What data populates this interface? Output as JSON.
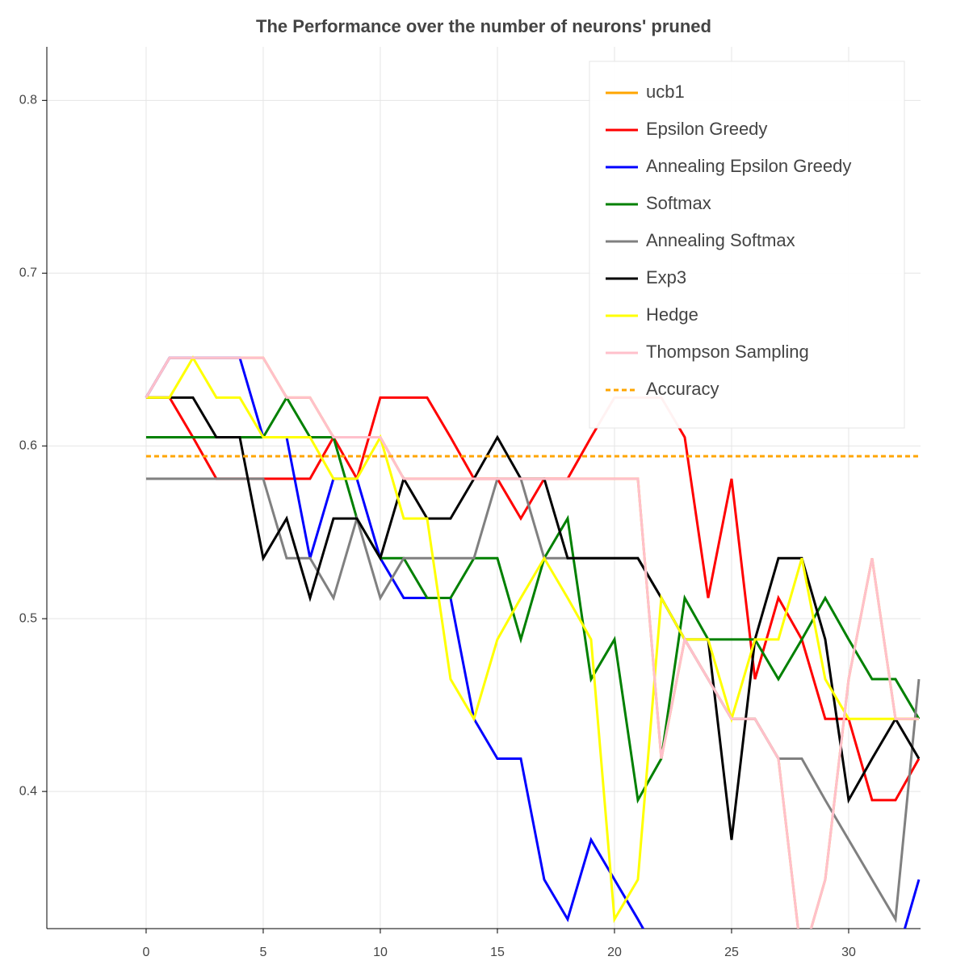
{
  "chart_data": {
    "type": "line",
    "title": "The Performance over the number of neurons' pruned",
    "x": [
      0,
      1,
      2,
      3,
      4,
      5,
      6,
      7,
      8,
      9,
      10,
      11,
      12,
      13,
      14,
      15,
      16,
      17,
      18,
      19,
      20,
      21,
      22,
      23,
      24,
      25,
      26,
      27,
      28,
      29,
      30,
      31,
      32,
      33
    ],
    "series": [
      {
        "name": "ucb1",
        "color": "#ffa500",
        "dash": false,
        "values": [
          0.628,
          0.651,
          0.651,
          0.651,
          0.651,
          0.651,
          0.628,
          0.628,
          0.605,
          0.605,
          0.605,
          0.581,
          0.581,
          0.581,
          0.581,
          0.581,
          0.581,
          0.581,
          0.581,
          0.581,
          0.581,
          0.581,
          0.419,
          0.488,
          0.465,
          0.442,
          0.442,
          0.419,
          0.302,
          0.349,
          0.465,
          0.535,
          0.442,
          0.442
        ]
      },
      {
        "name": "Epsilon Greedy",
        "color": "#ff0000",
        "dash": false,
        "values": [
          0.628,
          0.628,
          0.605,
          0.581,
          0.581,
          0.581,
          0.581,
          0.581,
          0.605,
          0.581,
          0.628,
          0.628,
          0.628,
          0.605,
          0.581,
          0.581,
          0.558,
          0.581,
          0.581,
          0.605,
          0.628,
          0.628,
          0.628,
          0.605,
          0.512,
          0.581,
          0.465,
          0.512,
          0.488,
          0.442,
          0.442,
          0.395,
          0.395,
          0.419
        ]
      },
      {
        "name": "Annealing Epsilon Greedy",
        "color": "#0000ff",
        "dash": false,
        "values": [
          0.628,
          0.651,
          0.651,
          0.651,
          0.651,
          0.605,
          0.605,
          0.535,
          0.581,
          0.581,
          0.535,
          0.512,
          0.512,
          0.512,
          0.442,
          0.419,
          0.419,
          0.349,
          0.326,
          0.372,
          0.349,
          0.326,
          0.302,
          0.302,
          0.302,
          0.302,
          0.302,
          0.302,
          0.302,
          0.302,
          0.302,
          0.302,
          0.302,
          0.349
        ]
      },
      {
        "name": "Softmax",
        "color": "#008000",
        "dash": false,
        "values": [
          0.605,
          0.605,
          0.605,
          0.605,
          0.605,
          0.605,
          0.628,
          0.605,
          0.605,
          0.558,
          0.535,
          0.535,
          0.512,
          0.512,
          0.535,
          0.535,
          0.488,
          0.535,
          0.558,
          0.465,
          0.488,
          0.395,
          0.419,
          0.512,
          0.488,
          0.488,
          0.488,
          0.465,
          0.488,
          0.512,
          0.488,
          0.465,
          0.465,
          0.442
        ]
      },
      {
        "name": "Annealing Softmax",
        "color": "#808080",
        "dash": false,
        "values": [
          0.581,
          0.581,
          0.581,
          0.581,
          0.581,
          0.581,
          0.535,
          0.535,
          0.512,
          0.558,
          0.512,
          0.535,
          0.535,
          0.535,
          0.535,
          0.581,
          0.581,
          0.535,
          0.535,
          0.535,
          0.535,
          0.535,
          0.512,
          0.488,
          0.465,
          0.442,
          0.442,
          0.419,
          0.419,
          0.395,
          0.372,
          0.349,
          0.326,
          0.465
        ]
      },
      {
        "name": "Exp3",
        "color": "#000000",
        "dash": false,
        "values": [
          0.628,
          0.628,
          0.628,
          0.605,
          0.605,
          0.535,
          0.558,
          0.512,
          0.558,
          0.558,
          0.535,
          0.581,
          0.558,
          0.558,
          0.581,
          0.605,
          0.581,
          0.581,
          0.535,
          0.535,
          0.535,
          0.535,
          0.512,
          0.488,
          0.488,
          0.372,
          0.488,
          0.535,
          0.535,
          0.488,
          0.395,
          0.419,
          0.442,
          0.419
        ]
      },
      {
        "name": "Hedge",
        "color": "#ffff00",
        "dash": false,
        "values": [
          0.628,
          0.628,
          0.651,
          0.628,
          0.628,
          0.605,
          0.605,
          0.605,
          0.581,
          0.581,
          0.605,
          0.558,
          0.558,
          0.465,
          0.442,
          0.488,
          0.512,
          0.535,
          0.512,
          0.488,
          0.326,
          0.349,
          0.512,
          0.488,
          0.488,
          0.442,
          0.488,
          0.488,
          0.535,
          0.465,
          0.442,
          0.442,
          0.442,
          0.442
        ]
      },
      {
        "name": "Thompson Sampling",
        "color": "#ffc0cb",
        "dash": false,
        "values": [
          0.628,
          0.651,
          0.651,
          0.651,
          0.651,
          0.651,
          0.628,
          0.628,
          0.605,
          0.605,
          0.605,
          0.581,
          0.581,
          0.581,
          0.581,
          0.581,
          0.581,
          0.581,
          0.581,
          0.581,
          0.581,
          0.581,
          0.419,
          0.488,
          0.465,
          0.442,
          0.442,
          0.419,
          0.302,
          0.349,
          0.465,
          0.535,
          0.442,
          0.442
        ]
      },
      {
        "name": "Accuracy",
        "color": "#ffa500",
        "dash": true,
        "values": [
          0.594,
          0.594,
          0.594,
          0.594,
          0.594,
          0.594,
          0.594,
          0.594,
          0.594,
          0.594,
          0.594,
          0.594,
          0.594,
          0.594,
          0.594,
          0.594,
          0.594,
          0.594,
          0.594,
          0.594,
          0.594,
          0.594,
          0.594,
          0.594,
          0.594,
          0.594,
          0.594,
          0.594,
          0.594,
          0.594,
          0.594,
          0.594,
          0.594,
          0.594
        ]
      }
    ],
    "xlim": [
      -4.24,
      33.07
    ],
    "ylim": [
      0.3206,
      0.831
    ],
    "xticks": [
      0,
      5,
      10,
      15,
      20,
      25,
      30
    ],
    "yticks": [
      0.4,
      0.5,
      0.6,
      0.7,
      0.8
    ],
    "grid": true,
    "legend": "top-right"
  }
}
